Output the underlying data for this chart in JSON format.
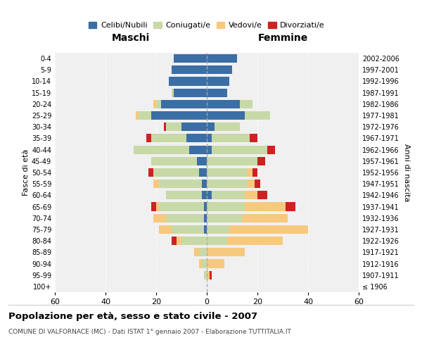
{
  "age_groups": [
    "100+",
    "95-99",
    "90-94",
    "85-89",
    "80-84",
    "75-79",
    "70-74",
    "65-69",
    "60-64",
    "55-59",
    "50-54",
    "45-49",
    "40-44",
    "35-39",
    "30-34",
    "25-29",
    "20-24",
    "15-19",
    "10-14",
    "5-9",
    "0-4"
  ],
  "birth_years": [
    "≤ 1906",
    "1907-1911",
    "1912-1916",
    "1917-1921",
    "1922-1926",
    "1927-1931",
    "1932-1936",
    "1937-1941",
    "1942-1946",
    "1947-1951",
    "1952-1956",
    "1957-1961",
    "1962-1966",
    "1967-1971",
    "1972-1976",
    "1977-1981",
    "1982-1986",
    "1987-1991",
    "1992-1996",
    "1997-2001",
    "2002-2006"
  ],
  "male": {
    "celibi": [
      0,
      0,
      0,
      0,
      0,
      1,
      1,
      1,
      2,
      2,
      3,
      4,
      7,
      8,
      10,
      22,
      18,
      13,
      15,
      14,
      13
    ],
    "coniugati": [
      0,
      1,
      2,
      3,
      10,
      13,
      15,
      18,
      14,
      17,
      18,
      18,
      22,
      14,
      6,
      5,
      2,
      1,
      0,
      0,
      0
    ],
    "vedovi": [
      0,
      0,
      1,
      2,
      2,
      5,
      5,
      1,
      0,
      2,
      0,
      0,
      0,
      0,
      0,
      1,
      1,
      0,
      0,
      0,
      0
    ],
    "divorziati": [
      0,
      0,
      0,
      0,
      2,
      0,
      0,
      2,
      0,
      0,
      2,
      0,
      0,
      2,
      1,
      0,
      0,
      0,
      0,
      0,
      0
    ]
  },
  "female": {
    "nubili": [
      0,
      0,
      0,
      0,
      0,
      0,
      0,
      0,
      2,
      0,
      0,
      0,
      2,
      2,
      3,
      15,
      13,
      8,
      9,
      10,
      12
    ],
    "coniugate": [
      0,
      0,
      0,
      0,
      8,
      9,
      14,
      15,
      13,
      16,
      16,
      20,
      22,
      15,
      10,
      10,
      5,
      0,
      0,
      0,
      0
    ],
    "vedove": [
      0,
      1,
      7,
      15,
      22,
      31,
      18,
      16,
      5,
      3,
      2,
      0,
      0,
      0,
      0,
      0,
      0,
      0,
      0,
      0,
      0
    ],
    "divorziate": [
      0,
      1,
      0,
      0,
      0,
      0,
      0,
      4,
      4,
      2,
      2,
      3,
      3,
      3,
      0,
      0,
      0,
      0,
      0,
      0,
      0
    ]
  },
  "colors": {
    "celibi_nubili": "#3a6ea5",
    "coniugati": "#c8d9a8",
    "vedovi": "#f7c97e",
    "divorziati": "#cc2222"
  },
  "xlim": 60,
  "title": "Popolazione per età, sesso e stato civile - 2007",
  "subtitle": "COMUNE DI VALFORNACE (MC) - Dati ISTAT 1° gennaio 2007 - Elaborazione TUTTITALIA.IT",
  "xlabel_left": "Maschi",
  "xlabel_right": "Femmine",
  "ylabel_left": "Fasce di età",
  "ylabel_right": "Anni di nascita",
  "legend_labels": [
    "Celibi/Nubili",
    "Coniugati/e",
    "Vedovi/e",
    "Divorziati/e"
  ],
  "bg_color": "#f0f0f0"
}
